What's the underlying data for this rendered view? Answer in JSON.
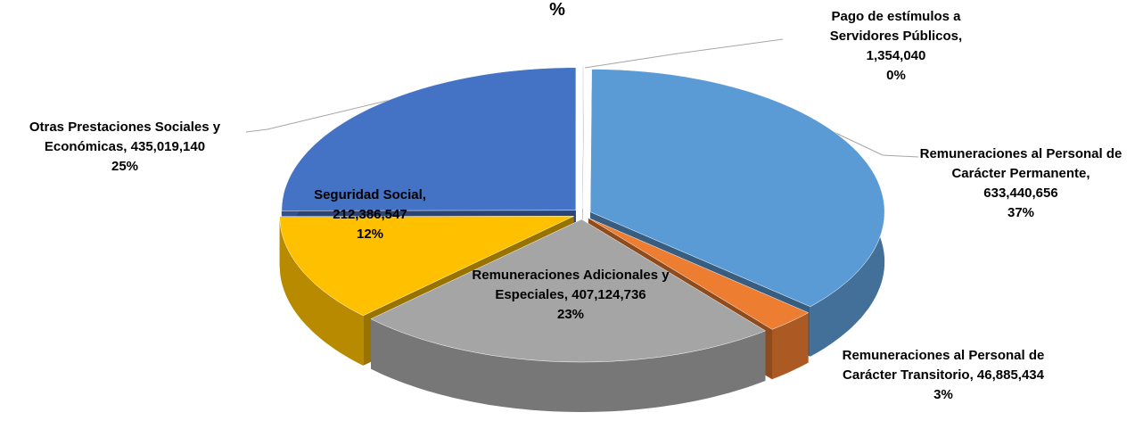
{
  "chart_data": {
    "type": "pie",
    "title": "%",
    "categories": [
      "Pago de estímulos a Servidores Públicos,",
      "Remuneraciones al Personal de Carácter Permanente,",
      "Remuneraciones al Personal de Carácter Transitorio,",
      "Remuneraciones Adicionales y Especiales,",
      "Seguridad Social,",
      "Otras Prestaciones Sociales y Económicas,"
    ],
    "values": [
      1354040,
      633440656,
      46885434,
      407124736,
      212386547,
      435019140
    ],
    "value_labels": [
      "1,354,040",
      "633,440,656",
      "46,885,434",
      "407,124,736",
      "212,386,547",
      "435,019,140"
    ],
    "percents": [
      0,
      37,
      3,
      23,
      12,
      25
    ],
    "percent_labels": [
      "0%",
      "37%",
      "3%",
      "23%",
      "12%",
      "25%"
    ],
    "colors": [
      "#e8e8e8",
      "#5b9bd5",
      "#ed7d31",
      "#a5a5a5",
      "#ffc000",
      "#4472c4"
    ]
  }
}
